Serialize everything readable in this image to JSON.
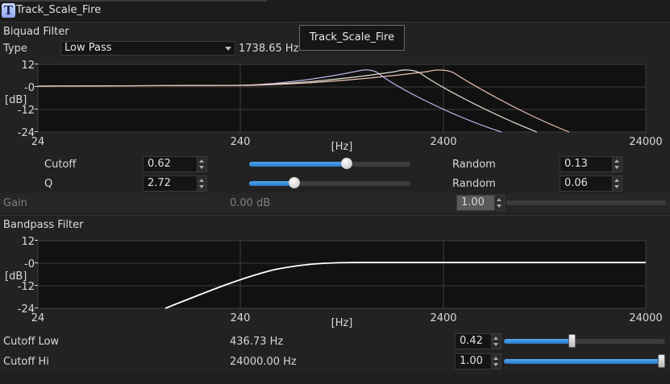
{
  "window": {
    "title": "Track_Scale_Fire",
    "icon": "app-t-icon"
  },
  "tooltip": {
    "text": "Track_Scale_Fire"
  },
  "biquad": {
    "header": "Biquad Filter",
    "type_label": "Type",
    "type_value": "Low Pass",
    "frequency_readout": "1738.65 Hz",
    "cutoff": {
      "label": "Cutoff",
      "value": "0.62",
      "slider_fraction": 0.62,
      "random_label": "Random",
      "random_value": "0.13"
    },
    "q": {
      "label": "Q",
      "value": "2.72",
      "slider_fraction": 0.28,
      "random_label": "Random",
      "random_value": "0.06"
    },
    "gain": {
      "label": "Gain",
      "readout": "0.00 dB",
      "value": "1.00"
    },
    "plot": {
      "y_ticks": [
        "12",
        "-0",
        "-12",
        "-24"
      ],
      "y_unit": "[dB]",
      "x_ticks": [
        "24",
        "240",
        "2400",
        "24000"
      ],
      "x_unit": "[Hz]",
      "curve_colors": [
        "#b9b2e6",
        "#e6e0cf",
        "#f0c8b8"
      ]
    }
  },
  "bandpass": {
    "header": "Bandpass Filter",
    "plot": {
      "y_ticks": [
        "12",
        "-0",
        "-12",
        "-24"
      ],
      "y_unit": "[dB]",
      "x_ticks": [
        "24",
        "240",
        "2400",
        "24000"
      ],
      "x_unit": "[Hz]",
      "curve_color": "#ffffff"
    },
    "cutoff_low": {
      "label": "Cutoff Low",
      "readout": "436.73 Hz",
      "value": "0.42",
      "slider_fraction": 0.42
    },
    "cutoff_hi": {
      "label": "Cutoff Hi",
      "readout": "24000.00 Hz",
      "value": "1.00",
      "slider_fraction": 1.0
    }
  }
}
